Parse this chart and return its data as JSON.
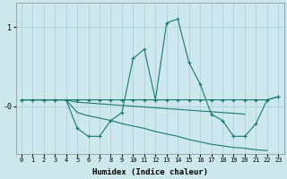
{
  "xlabel": "Humidex (Indice chaleur)",
  "background_color": "#cce8ec",
  "grid_color": "#aaccd4",
  "line_color": "#1a7a6e",
  "xlim": [
    -0.5,
    23.5
  ],
  "ylim": [
    -0.6,
    1.3
  ],
  "ytick_vals": [
    1.0,
    0.0
  ],
  "ytick_labels": [
    "1",
    "-0"
  ],
  "x_ticks": [
    0,
    1,
    2,
    3,
    4,
    5,
    6,
    7,
    8,
    9,
    10,
    11,
    12,
    13,
    14,
    15,
    16,
    17,
    18,
    19,
    20,
    21,
    22,
    23
  ],
  "series0_x": [
    0,
    1,
    2,
    3,
    4,
    5,
    6,
    7,
    8,
    9,
    10,
    11,
    12,
    13,
    14,
    15,
    16,
    17,
    18,
    19,
    20,
    21,
    22,
    23
  ],
  "series0_y": [
    0.08,
    0.08,
    0.08,
    0.08,
    0.08,
    -0.28,
    -0.38,
    -0.38,
    -0.18,
    -0.08,
    0.6,
    0.72,
    0.08,
    1.05,
    1.1,
    0.55,
    0.28,
    -0.1,
    -0.18,
    -0.38,
    -0.38,
    -0.22,
    0.08,
    0.12
  ],
  "series1_x": [
    0,
    1,
    2,
    3,
    4,
    5,
    6,
    7,
    8,
    9,
    10,
    11,
    12,
    13,
    14,
    15,
    16,
    17,
    18,
    19,
    20,
    21,
    22,
    23
  ],
  "series1_y": [
    0.08,
    0.08,
    0.08,
    0.08,
    0.08,
    0.08,
    0.08,
    0.08,
    0.08,
    0.08,
    0.08,
    0.08,
    0.08,
    0.08,
    0.08,
    0.08,
    0.08,
    0.08,
    0.08,
    0.08,
    0.08,
    0.08,
    0.08,
    0.12
  ],
  "series2_x": [
    0,
    1,
    2,
    3,
    4,
    5,
    6,
    7,
    8,
    9,
    10,
    11,
    12,
    13,
    14,
    15,
    16,
    17,
    18,
    19,
    20,
    21,
    22
  ],
  "series2_y": [
    0.08,
    0.08,
    0.08,
    0.08,
    0.08,
    -0.08,
    -0.12,
    -0.15,
    -0.18,
    -0.22,
    -0.25,
    -0.28,
    -0.32,
    -0.35,
    -0.38,
    -0.42,
    -0.45,
    -0.48,
    -0.5,
    -0.52,
    -0.53,
    -0.55,
    -0.56
  ],
  "series3_x": [
    0,
    1,
    2,
    3,
    4,
    5,
    6,
    7,
    8,
    9,
    10,
    11,
    12,
    13,
    14,
    15,
    16,
    17,
    18,
    19,
    20
  ],
  "series3_y": [
    0.08,
    0.08,
    0.08,
    0.08,
    0.08,
    0.05,
    0.04,
    0.03,
    0.02,
    0.01,
    0.0,
    -0.01,
    -0.02,
    -0.03,
    -0.04,
    -0.05,
    -0.06,
    -0.07,
    -0.08,
    -0.09,
    -0.1
  ]
}
